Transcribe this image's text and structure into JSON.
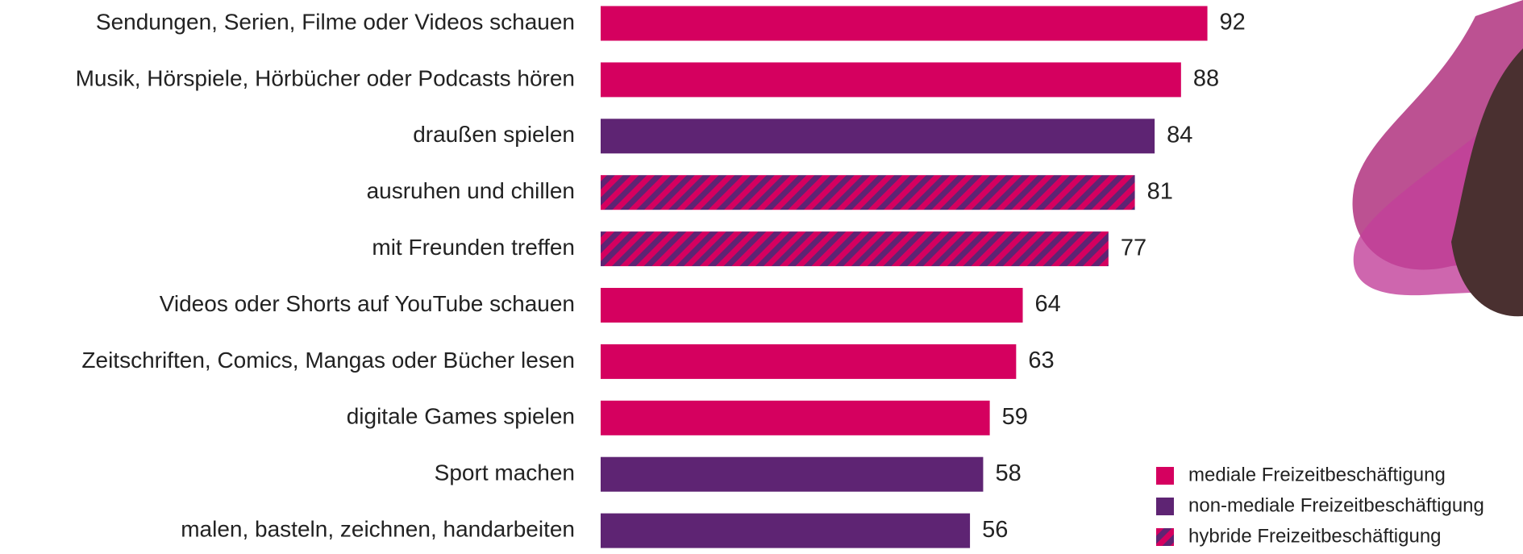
{
  "chart_data": {
    "type": "hbar",
    "categories": [
      "Sendungen, Serien, Filme oder Videos schauen",
      "Musik, Hörspiele, Hörbücher oder Podcasts hören",
      "draußen spielen",
      "ausruhen und chillen",
      "mit Freunden treffen",
      "Videos oder Shorts auf YouTube schauen",
      "Zeitschriften, Comics, Mangas oder Bücher lesen",
      "digitale Games spielen",
      "Sport machen",
      "malen, basteln, zeichnen, handarbeiten"
    ],
    "series": [
      {
        "name": "mediale Freizeitbeschäftigung",
        "color": "#d5005f",
        "values": [
          92,
          88,
          null,
          null,
          null,
          64,
          63,
          59,
          null,
          null
        ]
      },
      {
        "name": "non-mediale Freizeitbeschäftigung",
        "color": "#5e2473",
        "values": [
          null,
          null,
          84,
          null,
          null,
          null,
          null,
          null,
          58,
          56
        ]
      },
      {
        "name": "hybride Freizeitbeschäftigung",
        "color": "#5e2473",
        "hatch_color": "#d5005f",
        "values": [
          null,
          null,
          null,
          81,
          77,
          null,
          null,
          null,
          null,
          null
        ]
      }
    ],
    "xlim": [
      0,
      100
    ],
    "legend": "bottom-right"
  }
}
